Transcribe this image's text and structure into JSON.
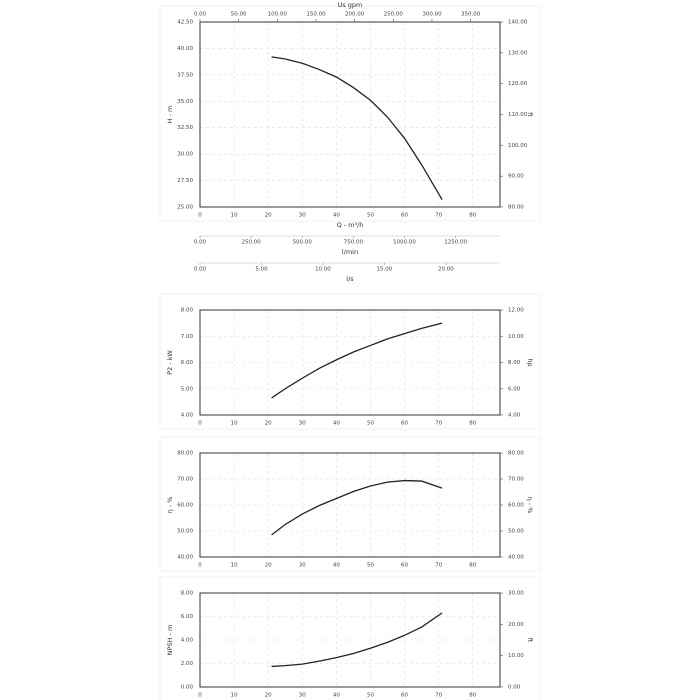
{
  "chart_data": [
    {
      "type": "line",
      "xlabel": "Q - m³/h",
      "ylabel": "H - m",
      "y2label": "ft",
      "x": [
        21,
        25,
        30,
        35,
        40,
        45,
        50,
        55,
        60,
        65,
        71
      ],
      "series": [
        {
          "color": "#222222",
          "values": [
            39.2,
            39.0,
            38.6,
            38.0,
            37.3,
            36.3,
            35.1,
            33.5,
            31.5,
            29.0,
            25.7
          ]
        }
      ],
      "xlim": [
        0,
        88
      ],
      "xticks": [
        0,
        10,
        20,
        30,
        40,
        50,
        60,
        70,
        80
      ],
      "ylim": [
        25,
        42.5
      ],
      "yticks": [
        {
          "value": 25,
          "label": "25.00"
        },
        {
          "value": 27.5,
          "label": "27.50"
        },
        {
          "value": 30,
          "label": "30.00"
        },
        {
          "value": 32.5,
          "label": "32.50"
        },
        {
          "value": 35,
          "label": "35.00"
        },
        {
          "value": 37.5,
          "label": "37.50"
        },
        {
          "value": 40,
          "label": "40.00"
        },
        {
          "value": 42.5,
          "label": "42.50"
        }
      ],
      "y2lim": [
        80,
        140
      ],
      "y2ticks": [
        {
          "value": 80,
          "label": "80.00"
        },
        {
          "value": 90,
          "label": "90.00"
        },
        {
          "value": 100,
          "label": "100.00"
        },
        {
          "value": 110,
          "label": "110.00"
        },
        {
          "value": 120,
          "label": "120.00"
        },
        {
          "value": 130,
          "label": "130.00"
        },
        {
          "value": 140,
          "label": "140.00"
        }
      ],
      "top_axis": {
        "label": "Us gpm",
        "xlim": [
          0,
          388
        ],
        "xticks": [
          {
            "value": 0,
            "label": "0.00"
          },
          {
            "value": 50,
            "label": "50.00"
          },
          {
            "value": 100,
            "label": "100.00"
          },
          {
            "value": 150,
            "label": "150.00"
          },
          {
            "value": 200,
            "label": "200.00"
          },
          {
            "value": 250,
            "label": "250.00"
          },
          {
            "value": 300,
            "label": "300.00"
          },
          {
            "value": 350,
            "label": "350.00"
          }
        ]
      },
      "extra_axes": [
        {
          "label": "l/min",
          "xlim": [
            0,
            1467
          ],
          "xticks": [
            {
              "value": 0,
              "label": "0.00"
            },
            {
              "value": 250,
              "label": "250.00"
            },
            {
              "value": 500,
              "label": "500.00"
            },
            {
              "value": 750,
              "label": "750.00"
            },
            {
              "value": 1000,
              "label": "1000.00"
            },
            {
              "value": 1250,
              "label": "1250.00"
            }
          ]
        },
        {
          "label": "l/s",
          "xlim": [
            0,
            24.4
          ],
          "xticks": [
            {
              "value": 0,
              "label": "0.00"
            },
            {
              "value": 5,
              "label": "5.00"
            },
            {
              "value": 10,
              "label": "10.00"
            },
            {
              "value": 15,
              "label": "15.00"
            },
            {
              "value": 20,
              "label": "20.00"
            }
          ]
        }
      ],
      "grid": true
    },
    {
      "type": "line",
      "ylabel": "P2 - kW",
      "y2label": "hp",
      "x": [
        21,
        25,
        30,
        35,
        40,
        45,
        50,
        55,
        60,
        65,
        71
      ],
      "series": [
        {
          "color": "#222222",
          "values": [
            4.65,
            5.0,
            5.4,
            5.78,
            6.1,
            6.4,
            6.65,
            6.9,
            7.1,
            7.3,
            7.5
          ]
        }
      ],
      "xlim": [
        0,
        88
      ],
      "xticks": [
        0,
        10,
        20,
        30,
        40,
        50,
        60,
        70,
        80
      ],
      "ylim": [
        4,
        8
      ],
      "yticks": [
        {
          "value": 4,
          "label": "4.00"
        },
        {
          "value": 5,
          "label": "5.00"
        },
        {
          "value": 6,
          "label": "6.00"
        },
        {
          "value": 7,
          "label": "7.00"
        },
        {
          "value": 8,
          "label": "8.00"
        }
      ],
      "y2lim": [
        4,
        12
      ],
      "y2ticks": [
        {
          "value": 4,
          "label": "4.00"
        },
        {
          "value": 6,
          "label": "6.00"
        },
        {
          "value": 8,
          "label": "8.00"
        },
        {
          "value": 10,
          "label": "10.00"
        },
        {
          "value": 12,
          "label": "12.00"
        }
      ],
      "grid": true
    },
    {
      "type": "line",
      "ylabel": "η - %",
      "y2label": "η - %",
      "x": [
        21,
        25,
        30,
        35,
        40,
        45,
        50,
        55,
        60,
        65,
        71
      ],
      "series": [
        {
          "color": "#222222",
          "values": [
            48.5,
            52.5,
            56.5,
            59.8,
            62.5,
            65.2,
            67.3,
            68.8,
            69.4,
            69.2,
            66.5
          ]
        }
      ],
      "xlim": [
        0,
        88
      ],
      "xticks": [
        0,
        10,
        20,
        30,
        40,
        50,
        60,
        70,
        80
      ],
      "ylim": [
        40,
        80
      ],
      "yticks": [
        {
          "value": 40,
          "label": "40.00"
        },
        {
          "value": 50,
          "label": "50.00"
        },
        {
          "value": 60,
          "label": "60.00"
        },
        {
          "value": 70,
          "label": "70.00"
        },
        {
          "value": 80,
          "label": "80.00"
        }
      ],
      "y2lim": [
        40,
        80
      ],
      "y2ticks": [
        {
          "value": 40,
          "label": "40.00"
        },
        {
          "value": 50,
          "label": "50.00"
        },
        {
          "value": 60,
          "label": "60.00"
        },
        {
          "value": 70,
          "label": "70.00"
        },
        {
          "value": 80,
          "label": "80.00"
        }
      ],
      "grid": true
    },
    {
      "type": "line",
      "ylabel": "NPSH - m",
      "y2label": "ft",
      "x": [
        21,
        25,
        30,
        35,
        40,
        45,
        50,
        55,
        60,
        65,
        71
      ],
      "series": [
        {
          "color": "#222222",
          "values": [
            1.75,
            1.82,
            1.95,
            2.2,
            2.5,
            2.85,
            3.3,
            3.8,
            4.4,
            5.1,
            6.3
          ]
        }
      ],
      "xlim": [
        0,
        88
      ],
      "xticks": [
        0,
        10,
        20,
        30,
        40,
        50,
        60,
        70,
        80
      ],
      "ylim": [
        0,
        8
      ],
      "yticks": [
        {
          "value": 0,
          "label": "0.00"
        },
        {
          "value": 2,
          "label": "2.00"
        },
        {
          "value": 4,
          "label": "4.00"
        },
        {
          "value": 6,
          "label": "6.00"
        },
        {
          "value": 8,
          "label": "8.00"
        }
      ],
      "y2lim": [
        0,
        30
      ],
      "y2ticks": [
        {
          "value": 0,
          "label": "0.00"
        },
        {
          "value": 10,
          "label": "10.00"
        },
        {
          "value": 20,
          "label": "20.00"
        },
        {
          "value": 30,
          "label": "30.00"
        }
      ],
      "grid": true
    }
  ]
}
